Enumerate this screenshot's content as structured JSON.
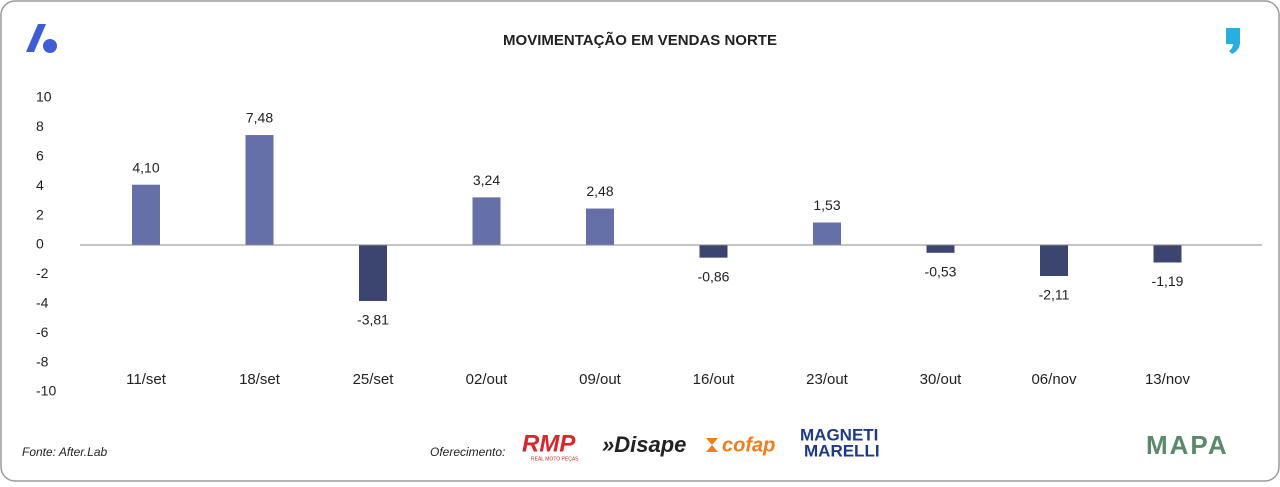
{
  "chart_data": {
    "type": "bar",
    "title": "MOVIMENTAÇÃO EM VENDAS NORTE",
    "categories": [
      "11/set",
      "18/set",
      "25/set",
      "02/out",
      "09/out",
      "16/out",
      "23/out",
      "30/out",
      "06/nov",
      "13/nov"
    ],
    "values": [
      4.1,
      7.48,
      -3.81,
      3.24,
      2.48,
      -0.86,
      1.53,
      -0.53,
      -2.11,
      -1.19
    ],
    "value_labels": [
      "4,10",
      "7,48",
      "-3,81",
      "3,24",
      "2,48",
      "-0,86",
      "1,53",
      "-0,53",
      "-2,11",
      "-1,19"
    ],
    "positive_color": "#6670a8",
    "negative_color": "#3b4570",
    "ylim": [
      -10,
      10
    ],
    "yticks": [
      10,
      8,
      6,
      4,
      2,
      0,
      -2,
      -4,
      -6,
      -8,
      -10
    ],
    "grid": false
  },
  "source": "Fonte: After.Lab",
  "sponsor_label": "Oferecimento:",
  "sponsors": [
    "RMP",
    "REAL MOTO PEÇAS",
    "»Disape",
    "cofap",
    "MAGNETI",
    "MARELLI"
  ],
  "brand": "MAPA"
}
